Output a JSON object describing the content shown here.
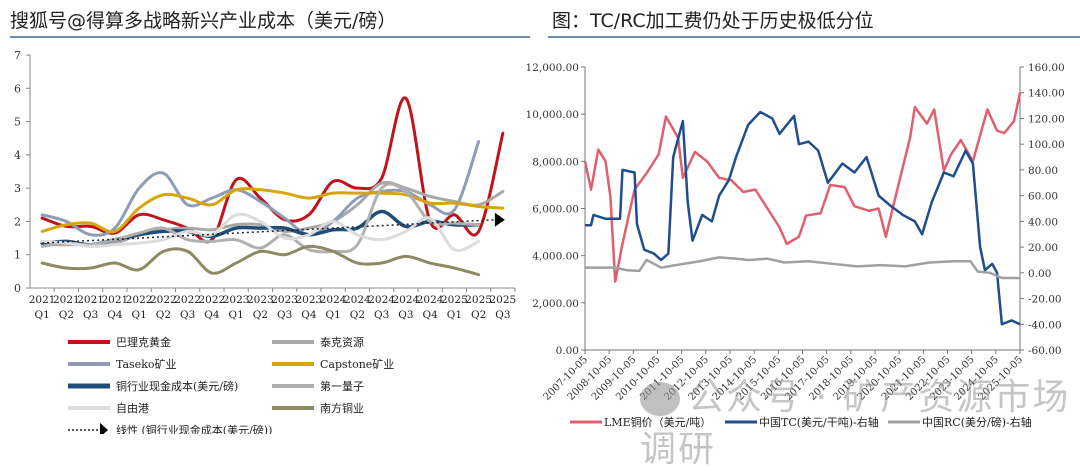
{
  "header": {
    "left_title": "搜狐号@得算多战略新兴产业成本（美元/磅）",
    "right_title": "图：TC/RC加工费仍处于历史极低分位"
  },
  "watermark": "公众号 · 矿产资源市场调研",
  "chart_data": [
    {
      "type": "line",
      "title": "成本（美元/磅）",
      "ylim": [
        0,
        7
      ],
      "yticks": [
        0,
        1,
        2,
        3,
        4,
        5,
        6,
        7
      ],
      "categories": [
        [
          "2021",
          "Q1"
        ],
        [
          "2021",
          "Q2"
        ],
        [
          "2021",
          "Q3"
        ],
        [
          "2021",
          "Q4"
        ],
        [
          "2022",
          "Q1"
        ],
        [
          "2022",
          "Q2"
        ],
        [
          "2022",
          "Q3"
        ],
        [
          "2022",
          "Q4"
        ],
        [
          "2023",
          "Q1"
        ],
        [
          "2023",
          "Q2"
        ],
        [
          "2023",
          "Q3"
        ],
        [
          "2023",
          "Q4"
        ],
        [
          "2024",
          "Q1"
        ],
        [
          "2024",
          "Q2"
        ],
        [
          "2024",
          "Q3"
        ],
        [
          "2024",
          "Q3"
        ],
        [
          "2024",
          "Q4"
        ],
        [
          "2025",
          "Q1"
        ],
        [
          "2025",
          "Q2"
        ],
        [
          "2025",
          "Q3"
        ]
      ],
      "legend_position": "bottom",
      "series": [
        {
          "name": "巴理克黄金",
          "color": "#c0141c",
          "values": [
            2.1,
            1.85,
            1.85,
            1.65,
            2.2,
            2.05,
            1.8,
            1.45,
            3.25,
            2.7,
            2.05,
            2.2,
            3.2,
            3.0,
            3.3,
            5.7,
            2.0,
            2.2,
            1.7,
            4.65
          ]
        },
        {
          "name": "泰克资源",
          "color": "#a8a8a8",
          "values": [
            1.3,
            1.3,
            1.3,
            1.35,
            1.6,
            1.75,
            1.8,
            1.75,
            1.9,
            1.9,
            1.7,
            1.8,
            2.0,
            2.5,
            3.15,
            3.0,
            2.75,
            2.6,
            2.5,
            2.9
          ]
        },
        {
          "name": "Taseko矿业",
          "color": "#8e9db5",
          "values": [
            2.2,
            2.0,
            1.6,
            1.8,
            3.0,
            3.45,
            2.5,
            2.7,
            2.95,
            2.6,
            2.1,
            1.6,
            2.0,
            2.7,
            2.9,
            2.9,
            2.5,
            2.35,
            4.4,
            null
          ]
        },
        {
          "name": "Capstone矿业",
          "color": "#d4a60c",
          "values": [
            1.7,
            1.9,
            1.95,
            1.7,
            2.4,
            2.8,
            2.7,
            2.5,
            2.95,
            2.95,
            2.85,
            2.7,
            2.85,
            2.85,
            2.85,
            2.8,
            2.55,
            2.55,
            2.45,
            2.4
          ]
        },
        {
          "name": "铜行业现金成本(美元/磅)",
          "color": "#1f4e79",
          "values": [
            1.35,
            1.4,
            1.3,
            1.45,
            1.6,
            1.7,
            1.7,
            1.55,
            1.8,
            1.8,
            1.8,
            1.6,
            1.75,
            1.8,
            2.3,
            1.85,
            2.0,
            1.9,
            1.9,
            null
          ]
        },
        {
          "name": "第一量子",
          "color": "#b0b0b0",
          "values": [
            1.25,
            1.35,
            1.3,
            1.45,
            1.65,
            1.8,
            1.45,
            1.4,
            1.45,
            1.2,
            1.6,
            1.15,
            1.1,
            1.3,
            3.0,
            2.9,
            2.0,
            1.95,
            1.9,
            null
          ]
        },
        {
          "name": "自由港",
          "color": "#dcdcdc",
          "values": [
            1.4,
            1.35,
            1.25,
            1.3,
            1.35,
            1.45,
            1.7,
            1.6,
            2.2,
            2.0,
            1.5,
            1.6,
            2.0,
            1.6,
            1.45,
            1.7,
            2.1,
            1.15,
            1.4,
            null
          ]
        },
        {
          "name": "南方铜业",
          "color": "#8c8a62",
          "values": [
            0.75,
            0.6,
            0.6,
            0.75,
            0.55,
            1.1,
            1.1,
            0.45,
            0.75,
            1.1,
            1.0,
            1.25,
            1.1,
            0.75,
            0.75,
            0.95,
            0.75,
            0.6,
            0.4,
            null
          ]
        }
      ],
      "trendline": {
        "name": "线性 (铜行业现金成本(美元/磅))",
        "start": 1.35,
        "end": 2.05
      }
    },
    {
      "type": "line",
      "xlim": [
        2007.75,
        2025.75
      ],
      "xticks": [
        "2007-10-05",
        "2008-10-05",
        "2009-10-05",
        "2010-10-05",
        "2011-10-05",
        "2012-10-05",
        "2013-10-05",
        "2014-10-05",
        "2015-10-05",
        "2016-10-05",
        "2017-10-05",
        "2018-10-05",
        "2019-10-05",
        "2020-10-05",
        "2021-10-05",
        "2022-10-05",
        "2023-10-05",
        "2024-10-05",
        "2025-10-05"
      ],
      "y_left": {
        "ylim": [
          0,
          12000
        ],
        "ticks": [
          "0.00",
          "2,000.00",
          "4,000.00",
          "6,000.00",
          "8,000.00",
          "10,000.00",
          "12,000.00"
        ]
      },
      "y_right": {
        "ylim": [
          -60,
          160
        ],
        "ticks": [
          "-60.00",
          "-40.00",
          "-20.00",
          "0.00",
          "20.00",
          "40.00",
          "60.00",
          "80.00",
          "100.00",
          "120.00",
          "140.00",
          "160.00"
        ]
      },
      "legend_position": "bottom",
      "series": [
        {
          "name": "LME铜价（美元/吨）",
          "axis": "left",
          "color": "#e06070",
          "x": [
            2007.75,
            2008.0,
            2008.3,
            2008.6,
            2008.8,
            2009.0,
            2009.3,
            2009.8,
            2010.3,
            2010.8,
            2011.1,
            2011.6,
            2011.8,
            2012.3,
            2012.8,
            2013.3,
            2013.8,
            2014.3,
            2014.8,
            2015.3,
            2015.8,
            2016.1,
            2016.6,
            2016.9,
            2017.5,
            2017.9,
            2018.5,
            2018.9,
            2019.5,
            2019.9,
            2020.2,
            2020.6,
            2021.2,
            2021.4,
            2021.9,
            2022.2,
            2022.6,
            2022.9,
            2023.3,
            2023.8,
            2024.4,
            2024.8,
            2025.1,
            2025.5,
            2025.75
          ],
          "values": [
            8000,
            6800,
            8500,
            8000,
            6500,
            2900,
            4500,
            6800,
            7500,
            8300,
            9900,
            9000,
            7300,
            8400,
            8000,
            7300,
            7200,
            6700,
            6800,
            6000,
            5200,
            4500,
            4800,
            5700,
            5800,
            7000,
            6900,
            6100,
            5900,
            6000,
            4800,
            6500,
            9000,
            10300,
            9600,
            10200,
            7600,
            8300,
            8900,
            8000,
            10200,
            9300,
            9200,
            9700,
            10900
          ]
        },
        {
          "name": "中国TC(美元/干吨)-右轴",
          "axis": "right",
          "color": "#1f4e8c",
          "x": [
            2007.75,
            2008.0,
            2008.1,
            2008.6,
            2009.2,
            2009.3,
            2009.8,
            2009.9,
            2010.2,
            2010.6,
            2010.9,
            2011.2,
            2011.4,
            2011.8,
            2012.0,
            2012.2,
            2012.6,
            2013.0,
            2013.3,
            2013.7,
            2014.0,
            2014.5,
            2015.0,
            2015.5,
            2015.8,
            2016.4,
            2016.6,
            2017.0,
            2017.4,
            2017.8,
            2018.4,
            2018.9,
            2019.4,
            2019.9,
            2020.4,
            2020.9,
            2021.4,
            2021.7,
            2022.1,
            2022.6,
            2023.0,
            2023.5,
            2023.8,
            2024.1,
            2024.3,
            2024.6,
            2024.8,
            2025.0,
            2025.4,
            2025.75
          ],
          "values": [
            37,
            37,
            45,
            42,
            42,
            80,
            78,
            38,
            18,
            15,
            10,
            15,
            90,
            118,
            55,
            25,
            45,
            40,
            60,
            72,
            90,
            115,
            125,
            120,
            108,
            122,
            100,
            102,
            95,
            70,
            85,
            78,
            90,
            60,
            52,
            45,
            40,
            30,
            55,
            78,
            75,
            95,
            85,
            20,
            2,
            7,
            0,
            -40,
            -37,
            -40
          ]
        },
        {
          "name": "中国RC(美分/磅)-右轴",
          "axis": "right",
          "color": "#a0a0a0",
          "x": [
            2007.75,
            2009.0,
            2009.5,
            2010.0,
            2010.3,
            2010.9,
            2011.5,
            2012.5,
            2013.3,
            2014.0,
            2014.5,
            2015.3,
            2016.0,
            2017.0,
            2018.0,
            2019.0,
            2020.0,
            2021.0,
            2022.0,
            2023.0,
            2023.7,
            2024.0,
            2024.5,
            2025.0,
            2025.75
          ],
          "values": [
            4,
            4,
            2,
            1.5,
            10,
            4,
            6,
            9,
            12,
            11,
            10,
            11,
            8,
            9,
            7,
            5,
            6,
            5,
            8,
            9,
            9,
            1,
            0,
            -4,
            -4
          ]
        }
      ]
    }
  ]
}
